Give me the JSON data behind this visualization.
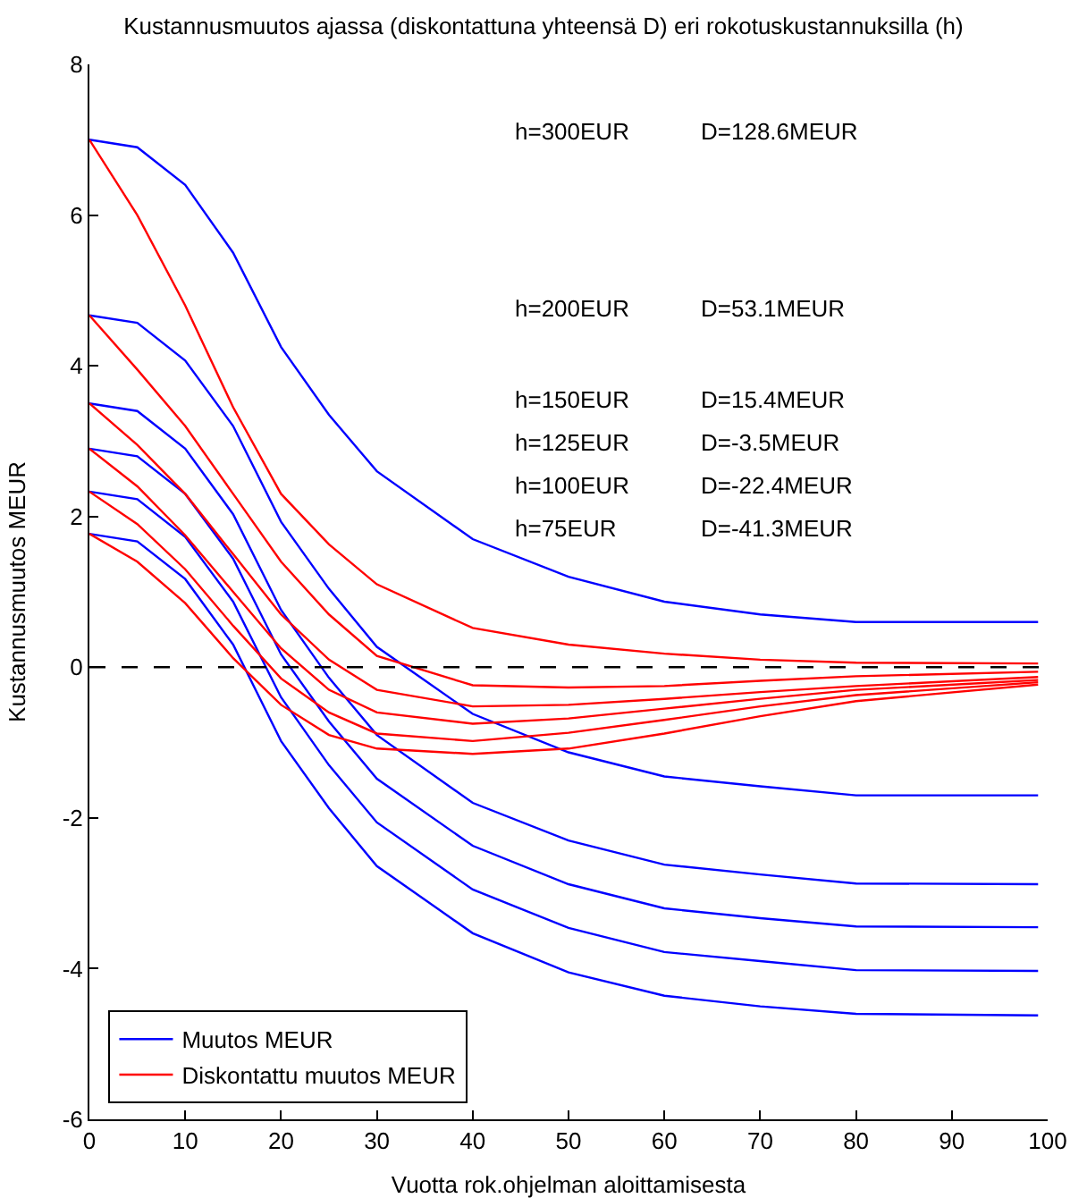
{
  "chart_data": {
    "type": "line",
    "title": "Kustannusmuutos ajassa (diskontattuna yhteensä D) eri rokotuskustannuksilla (h)",
    "xlabel": "Vuotta rok.ohjelman aloittamisesta",
    "ylabel": "Kustannusmuutos MEUR",
    "x": [
      0,
      5,
      10,
      15,
      20,
      25,
      30,
      40,
      50,
      60,
      70,
      80,
      99
    ],
    "series": [
      {
        "name": "Muutos MEUR",
        "color": "#0000ff",
        "values": [
          7.0,
          6.9,
          6.4,
          5.5,
          4.25,
          3.35,
          2.6,
          1.7,
          1.2,
          0.87,
          0.7,
          0.6,
          0.6
        ]
      },
      {
        "color": "#0000ff",
        "values": [
          4.67,
          4.57,
          4.07,
          3.2,
          1.93,
          1.04,
          0.27,
          -0.62,
          -1.13,
          -1.45,
          -1.58,
          -1.7,
          -1.7
        ]
      },
      {
        "color": "#0000ff",
        "values": [
          3.5,
          3.4,
          2.9,
          2.03,
          0.76,
          -0.14,
          -0.9,
          -1.8,
          -2.3,
          -2.62,
          -2.75,
          -2.87,
          -2.88
        ]
      },
      {
        "color": "#0000ff",
        "values": [
          2.9,
          2.8,
          2.3,
          1.44,
          0.17,
          -0.72,
          -1.48,
          -2.37,
          -2.88,
          -3.2,
          -3.33,
          -3.44,
          -3.45
        ]
      },
      {
        "color": "#0000ff",
        "values": [
          2.33,
          2.23,
          1.73,
          0.87,
          -0.4,
          -1.3,
          -2.06,
          -2.95,
          -3.46,
          -3.78,
          -3.9,
          -4.02,
          -4.03
        ]
      },
      {
        "color": "#0000ff",
        "values": [
          1.77,
          1.67,
          1.17,
          0.3,
          -0.98,
          -1.87,
          -2.64,
          -3.53,
          -4.05,
          -4.36,
          -4.5,
          -4.6,
          -4.62
        ]
      },
      {
        "name": "Diskontattu muutos MEUR",
        "color": "#ff0000",
        "values": [
          7.0,
          6.0,
          4.8,
          3.45,
          2.3,
          1.63,
          1.1,
          0.52,
          0.3,
          0.18,
          0.1,
          0.06,
          0.05
        ]
      },
      {
        "color": "#ff0000",
        "values": [
          4.67,
          3.95,
          3.2,
          2.3,
          1.4,
          0.7,
          0.15,
          -0.24,
          -0.27,
          -0.25,
          -0.18,
          -0.12,
          -0.06
        ]
      },
      {
        "color": "#ff0000",
        "values": [
          3.5,
          2.95,
          2.3,
          1.5,
          0.7,
          0.1,
          -0.3,
          -0.52,
          -0.5,
          -0.42,
          -0.33,
          -0.25,
          -0.13
        ]
      },
      {
        "color": "#ff0000",
        "values": [
          2.9,
          2.4,
          1.75,
          1.0,
          0.25,
          -0.3,
          -0.6,
          -0.75,
          -0.68,
          -0.55,
          -0.42,
          -0.3,
          -0.17
        ]
      },
      {
        "color": "#ff0000",
        "values": [
          2.33,
          1.9,
          1.3,
          0.55,
          -0.15,
          -0.6,
          -0.88,
          -0.98,
          -0.87,
          -0.7,
          -0.52,
          -0.37,
          -0.2
        ]
      },
      {
        "color": "#ff0000",
        "values": [
          1.77,
          1.4,
          0.85,
          0.12,
          -0.5,
          -0.9,
          -1.08,
          -1.15,
          -1.08,
          -0.88,
          -0.65,
          -0.45,
          -0.23
        ]
      }
    ],
    "xlim": [
      0,
      100
    ],
    "xticks": [
      0,
      10,
      20,
      30,
      40,
      50,
      60,
      70,
      80,
      90,
      100
    ],
    "ylim": [
      -6,
      8
    ],
    "yticks": [
      -6,
      -4,
      -2,
      0,
      2,
      4,
      6,
      8
    ],
    "ref_lines": [
      {
        "axis": "y",
        "value": 0,
        "color": "#000000",
        "line_style": "dashed"
      }
    ],
    "annotations": [
      "h=300EUR",
      "D=128.6MEUR",
      "h=200EUR",
      "D=53.1MEUR",
      "h=150EUR",
      "D=15.4MEUR",
      "h=125EUR",
      "D=-3.5MEUR",
      "h=100EUR",
      "D=-22.4MEUR",
      "h=75EUR",
      "D=-41.3MEUR"
    ],
    "grid": false,
    "legend": "bottom left",
    "marker": "none",
    "line_style": "solid"
  }
}
